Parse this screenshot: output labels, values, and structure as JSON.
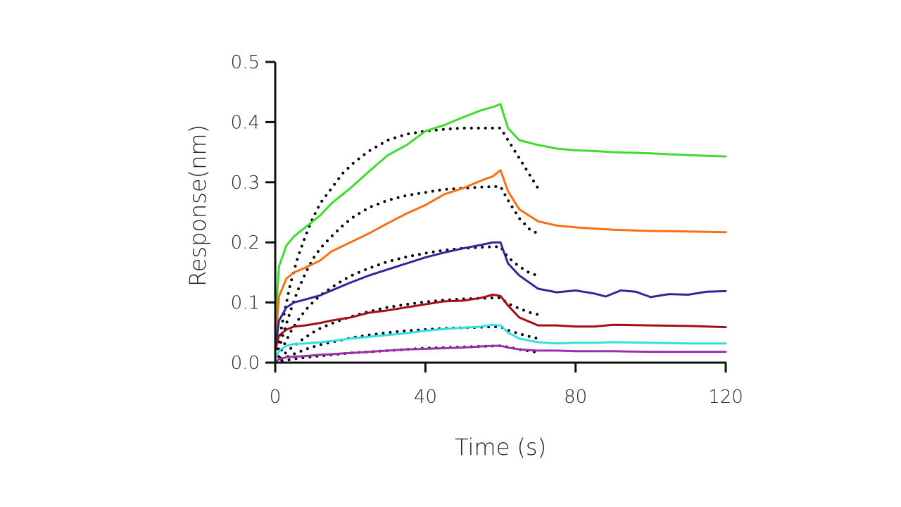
{
  "chart_data": {
    "type": "line",
    "xlabel": "Time (s)",
    "ylabel": "Response(nm)",
    "xlim": [
      0,
      120
    ],
    "ylim": [
      0,
      0.5
    ],
    "x_ticks": [
      0,
      40,
      80,
      120
    ],
    "x_tick_labels": [
      "0",
      "40",
      "80",
      "120"
    ],
    "y_ticks": [
      0,
      0.1,
      0.2,
      0.3,
      0.4,
      0.5
    ],
    "y_tick_labels": [
      "0.0",
      "0.1",
      "0.2",
      "0.3",
      "0.4",
      "0.5"
    ],
    "grid": false,
    "legend": "none",
    "series": [
      {
        "color": "#3fdc2f",
        "style": "solid",
        "x": [
          0,
          1,
          3,
          5,
          8,
          12,
          15,
          20,
          25,
          30,
          35,
          40,
          45,
          50,
          55,
          58,
          60,
          62,
          65,
          70,
          75,
          80,
          85,
          90,
          100,
          110,
          120
        ],
        "y": [
          0.065,
          0.16,
          0.195,
          0.21,
          0.225,
          0.245,
          0.265,
          0.29,
          0.318,
          0.345,
          0.362,
          0.385,
          0.395,
          0.408,
          0.42,
          0.425,
          0.43,
          0.39,
          0.37,
          0.362,
          0.356,
          0.353,
          0.352,
          0.35,
          0.348,
          0.345,
          0.343
        ]
      },
      {
        "color": "#f87015",
        "style": "solid",
        "x": [
          0,
          1,
          3,
          5,
          8,
          12,
          15,
          20,
          25,
          30,
          35,
          40,
          45,
          50,
          55,
          58,
          60,
          62,
          65,
          70,
          75,
          80,
          85,
          90,
          100,
          110,
          120
        ],
        "y": [
          0.03,
          0.11,
          0.14,
          0.15,
          0.158,
          0.17,
          0.185,
          0.2,
          0.215,
          0.232,
          0.248,
          0.262,
          0.28,
          0.29,
          0.303,
          0.31,
          0.32,
          0.285,
          0.255,
          0.235,
          0.228,
          0.225,
          0.223,
          0.221,
          0.219,
          0.218,
          0.217
        ]
      },
      {
        "color": "#2b2a9a",
        "style": "solid",
        "x": [
          0,
          1,
          3,
          5,
          8,
          12,
          15,
          20,
          25,
          30,
          35,
          40,
          45,
          50,
          55,
          58,
          60,
          62,
          65,
          70,
          75,
          80,
          85,
          88,
          92,
          96,
          100,
          105,
          110,
          115,
          120
        ],
        "y": [
          0.02,
          0.07,
          0.092,
          0.1,
          0.105,
          0.112,
          0.12,
          0.133,
          0.145,
          0.155,
          0.165,
          0.175,
          0.183,
          0.19,
          0.196,
          0.2,
          0.2,
          0.165,
          0.145,
          0.123,
          0.117,
          0.12,
          0.115,
          0.11,
          0.12,
          0.118,
          0.109,
          0.114,
          0.113,
          0.118,
          0.119
        ]
      },
      {
        "color": "#a50d15",
        "style": "solid",
        "x": [
          0,
          1,
          3,
          5,
          8,
          12,
          15,
          20,
          25,
          30,
          35,
          40,
          45,
          50,
          55,
          58,
          60,
          62,
          65,
          70,
          75,
          80,
          85,
          90,
          100,
          110,
          120
        ],
        "y": [
          0.02,
          0.045,
          0.055,
          0.06,
          0.062,
          0.066,
          0.07,
          0.075,
          0.083,
          0.087,
          0.092,
          0.097,
          0.102,
          0.103,
          0.108,
          0.113,
          0.111,
          0.095,
          0.075,
          0.062,
          0.062,
          0.06,
          0.06,
          0.063,
          0.062,
          0.061,
          0.059
        ]
      },
      {
        "color": "#31e0e0",
        "style": "solid",
        "x": [
          0,
          1,
          3,
          5,
          8,
          12,
          15,
          20,
          25,
          30,
          35,
          40,
          45,
          50,
          55,
          58,
          60,
          62,
          65,
          70,
          75,
          80,
          85,
          90,
          100,
          110,
          120
        ],
        "y": [
          0.005,
          0.02,
          0.028,
          0.031,
          0.032,
          0.034,
          0.036,
          0.04,
          0.043,
          0.046,
          0.049,
          0.053,
          0.056,
          0.058,
          0.06,
          0.063,
          0.062,
          0.05,
          0.04,
          0.034,
          0.032,
          0.033,
          0.033,
          0.034,
          0.033,
          0.032,
          0.032
        ]
      },
      {
        "color": "#9b2fb0",
        "style": "solid",
        "x": [
          0,
          1,
          3,
          5,
          8,
          12,
          15,
          20,
          25,
          30,
          35,
          40,
          45,
          50,
          55,
          58,
          60,
          62,
          65,
          70,
          75,
          80,
          85,
          90,
          100,
          110,
          120
        ],
        "y": [
          0.0,
          0.006,
          0.009,
          0.01,
          0.011,
          0.013,
          0.014,
          0.016,
          0.018,
          0.02,
          0.022,
          0.023,
          0.024,
          0.025,
          0.027,
          0.028,
          0.028,
          0.025,
          0.022,
          0.02,
          0.02,
          0.019,
          0.019,
          0.019,
          0.018,
          0.018,
          0.018
        ]
      },
      {
        "color": "#000000",
        "style": "dotted",
        "x": [
          0,
          2,
          4,
          6,
          8,
          10,
          12,
          15,
          18,
          21,
          25,
          30,
          35,
          40,
          45,
          50,
          55,
          60,
          62,
          65,
          68,
          70
        ],
        "y": [
          0.0,
          0.07,
          0.13,
          0.175,
          0.21,
          0.24,
          0.265,
          0.29,
          0.315,
          0.333,
          0.352,
          0.37,
          0.38,
          0.385,
          0.388,
          0.39,
          0.39,
          0.39,
          0.37,
          0.34,
          0.31,
          0.29
        ]
      },
      {
        "color": "#000000",
        "style": "dotted",
        "x": [
          0,
          2,
          4,
          6,
          8,
          10,
          12,
          15,
          18,
          21,
          25,
          30,
          35,
          40,
          45,
          50,
          55,
          60,
          62,
          65,
          68,
          70
        ],
        "y": [
          0.0,
          0.045,
          0.085,
          0.12,
          0.148,
          0.172,
          0.19,
          0.21,
          0.228,
          0.243,
          0.258,
          0.27,
          0.278,
          0.283,
          0.288,
          0.29,
          0.292,
          0.293,
          0.27,
          0.24,
          0.22,
          0.215
        ]
      },
      {
        "color": "#000000",
        "style": "dotted",
        "x": [
          0,
          2,
          4,
          6,
          8,
          10,
          12,
          15,
          18,
          21,
          25,
          30,
          35,
          40,
          45,
          50,
          55,
          60,
          62,
          65,
          68,
          70
        ],
        "y": [
          0.0,
          0.025,
          0.05,
          0.07,
          0.087,
          0.1,
          0.112,
          0.125,
          0.137,
          0.147,
          0.157,
          0.168,
          0.176,
          0.182,
          0.187,
          0.19,
          0.192,
          0.193,
          0.175,
          0.16,
          0.148,
          0.145
        ]
      },
      {
        "color": "#000000",
        "style": "dotted",
        "x": [
          0,
          2,
          4,
          6,
          8,
          10,
          12,
          15,
          18,
          21,
          25,
          30,
          35,
          40,
          45,
          50,
          55,
          60,
          62,
          65,
          68,
          70
        ],
        "y": [
          0.0,
          0.012,
          0.023,
          0.033,
          0.042,
          0.05,
          0.057,
          0.065,
          0.072,
          0.078,
          0.085,
          0.092,
          0.097,
          0.101,
          0.104,
          0.106,
          0.107,
          0.108,
          0.098,
          0.09,
          0.083,
          0.08
        ]
      },
      {
        "color": "#000000",
        "style": "dotted",
        "x": [
          0,
          2,
          4,
          6,
          8,
          10,
          12,
          15,
          18,
          21,
          25,
          30,
          35,
          40,
          45,
          50,
          55,
          60,
          62,
          65,
          68,
          70
        ],
        "y": [
          0.0,
          0.006,
          0.012,
          0.017,
          0.022,
          0.026,
          0.03,
          0.034,
          0.038,
          0.042,
          0.046,
          0.05,
          0.053,
          0.055,
          0.057,
          0.058,
          0.059,
          0.06,
          0.054,
          0.048,
          0.043,
          0.04
        ]
      },
      {
        "color": "#000000",
        "style": "dotted",
        "x": [
          0,
          3,
          6,
          10,
          15,
          20,
          25,
          30,
          35,
          40,
          45,
          50,
          55,
          60,
          62,
          65,
          68,
          70
        ],
        "y": [
          0.0,
          0.004,
          0.007,
          0.01,
          0.013,
          0.016,
          0.018,
          0.02,
          0.022,
          0.024,
          0.025,
          0.026,
          0.027,
          0.028,
          0.026,
          0.022,
          0.019,
          0.017
        ]
      }
    ]
  }
}
